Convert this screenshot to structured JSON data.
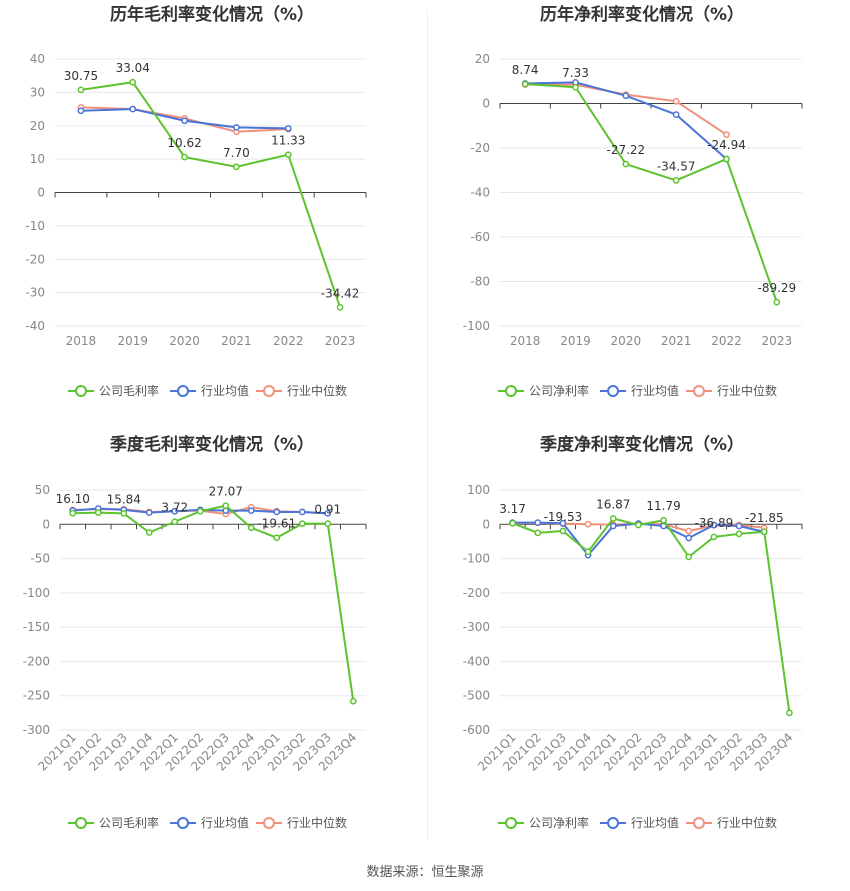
{
  "colors": {
    "company": "#5cc32e",
    "avg": "#4a74d9",
    "median": "#f0907a"
  },
  "legend_icon": "line-with-circle-marker",
  "source": "数据来源：恒生聚源",
  "chart_data": [
    {
      "id": "annual-gross",
      "type": "line",
      "title": "历年毛利率变化情况（%）",
      "categories": [
        "2018",
        "2019",
        "2020",
        "2021",
        "2022",
        "2023"
      ],
      "ylim": [
        -40,
        40
      ],
      "yticks": [
        40,
        30,
        20,
        10,
        0,
        -10,
        -20,
        -30,
        -40
      ],
      "series": [
        {
          "key": "company",
          "name": "公司毛利率",
          "values": [
            30.75,
            33.04,
            10.62,
            7.7,
            11.33,
            -34.42
          ],
          "labels": [
            "30.75",
            "33.04",
            "10.62",
            "7.70",
            "11.33",
            "-34.42"
          ]
        },
        {
          "key": "avg",
          "name": "行业均值",
          "values": [
            24.5,
            25.0,
            21.5,
            19.5,
            19.2,
            null
          ]
        },
        {
          "key": "median",
          "name": "行业中位数",
          "values": [
            25.5,
            25.0,
            22.2,
            18.2,
            19.0,
            null
          ]
        }
      ]
    },
    {
      "id": "annual-net",
      "type": "line",
      "title": "历年净利率变化情况（%）",
      "categories": [
        "2018",
        "2019",
        "2020",
        "2021",
        "2022",
        "2023"
      ],
      "ylim": [
        -100,
        20
      ],
      "yticks": [
        20,
        0,
        -20,
        -40,
        -60,
        -80,
        -100
      ],
      "series": [
        {
          "key": "company",
          "name": "公司净利率",
          "values": [
            8.74,
            7.33,
            -27.22,
            -34.57,
            -24.94,
            -89.29
          ],
          "labels": [
            "8.74",
            "7.33",
            "-27.22",
            "-34.57",
            "-24.94",
            "-89.29"
          ]
        },
        {
          "key": "avg",
          "name": "行业均值",
          "values": [
            9.0,
            9.5,
            3.5,
            -5.0,
            -25.0,
            null
          ]
        },
        {
          "key": "median",
          "name": "行业中位数",
          "values": [
            8.5,
            8.5,
            4.0,
            1.0,
            -14.0,
            null
          ]
        }
      ]
    },
    {
      "id": "quarterly-gross",
      "type": "line",
      "title": "季度毛利率变化情况（%）",
      "categories": [
        "2021Q1",
        "2021Q2",
        "2021Q3",
        "2021Q4",
        "2022Q1",
        "2022Q2",
        "2022Q3",
        "2022Q4",
        "2023Q1",
        "2023Q2",
        "2023Q3",
        "2023Q4"
      ],
      "ylim": [
        -300,
        50
      ],
      "yticks": [
        50,
        0,
        -50,
        -100,
        -150,
        -200,
        -250,
        -300
      ],
      "series": [
        {
          "key": "company",
          "name": "公司毛利率",
          "values": [
            16.1,
            17.0,
            15.84,
            -12.0,
            3.72,
            19.0,
            27.07,
            -5.0,
            -19.61,
            1.0,
            0.91,
            -258.0
          ],
          "labels": [
            "16.10",
            "",
            "15.84",
            "",
            "3.72",
            "",
            "27.07",
            "",
            "-19.61",
            "",
            "0.91",
            ""
          ]
        },
        {
          "key": "avg",
          "name": "行业均值",
          "values": [
            20.0,
            23.0,
            21.0,
            17.0,
            19.0,
            21.0,
            20.0,
            20.0,
            18.0,
            18.0,
            16.0,
            null
          ]
        },
        {
          "key": "median",
          "name": "行业中位数",
          "values": [
            21.0,
            22.0,
            22.0,
            18.0,
            19.0,
            20.0,
            15.0,
            25.0,
            19.0,
            18.0,
            16.0,
            null
          ]
        }
      ]
    },
    {
      "id": "quarterly-net",
      "type": "line",
      "title": "季度净利率变化情况（%）",
      "categories": [
        "2021Q1",
        "2021Q2",
        "2021Q3",
        "2021Q4",
        "2022Q1",
        "2022Q2",
        "2022Q3",
        "2022Q4",
        "2023Q1",
        "2023Q2",
        "2023Q3",
        "2023Q4"
      ],
      "ylim": [
        -600,
        100
      ],
      "yticks": [
        100,
        0,
        -100,
        -200,
        -300,
        -400,
        -500,
        -600
      ],
      "series": [
        {
          "key": "company",
          "name": "公司净利率",
          "values": [
            3.17,
            -25.0,
            -19.53,
            -80.0,
            16.87,
            -2.0,
            11.79,
            -95.0,
            -36.89,
            -28.0,
            -21.85,
            -550.0
          ],
          "labels": [
            "3.17",
            "",
            "-19.53",
            "",
            "16.87",
            "",
            "11.79",
            "",
            "-36.89",
            "",
            "-21.85",
            ""
          ]
        },
        {
          "key": "avg",
          "name": "行业均值",
          "values": [
            5.0,
            5.0,
            3.0,
            -90.0,
            -5.0,
            2.0,
            -5.0,
            -40.0,
            -2.0,
            -5.0,
            -22.0,
            null
          ]
        },
        {
          "key": "median",
          "name": "行业中位数",
          "values": [
            3.0,
            4.0,
            2.0,
            0.0,
            -1.0,
            2.0,
            0.0,
            -20.0,
            -3.0,
            -2.0,
            -10.0,
            null
          ]
        }
      ]
    }
  ]
}
